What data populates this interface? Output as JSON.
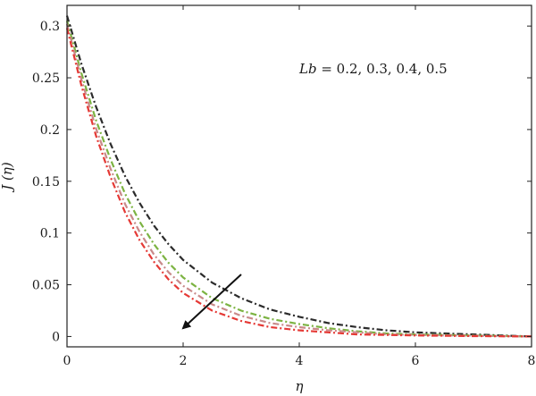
{
  "chart_data": {
    "type": "line",
    "xlabel": "η",
    "ylabel": "J (η)",
    "xlim": [
      0,
      8
    ],
    "ylim": [
      -0.01,
      0.32
    ],
    "xticks": [
      "0",
      "2",
      "4",
      "6",
      "8"
    ],
    "yticks": [
      "0",
      "0.05",
      "0.1",
      "0.15",
      "0.2",
      "0.25",
      "0.3"
    ],
    "grid": false,
    "annotation": {
      "prefix": "Lb",
      "text": " = 0.2, 0.3, 0.4, 0.5"
    },
    "arrow": {
      "from": [
        3.0,
        0.06
      ],
      "to": [
        2.0,
        0.008
      ]
    },
    "x": [
      0,
      0.25,
      0.5,
      0.75,
      1,
      1.25,
      1.5,
      1.75,
      2,
      2.5,
      3,
      3.5,
      4,
      4.5,
      5,
      5.5,
      6,
      6.5,
      7,
      7.5,
      8
    ],
    "series": [
      {
        "color": "#2b2b2b",
        "values": [
          0.31,
          0.263,
          0.222,
          0.186,
          0.155,
          0.129,
          0.107,
          0.089,
          0.074,
          0.052,
          0.037,
          0.026,
          0.019,
          0.013,
          0.009,
          0.006,
          0.004,
          0.003,
          0.002,
          0.001,
          0.0
        ]
      },
      {
        "color": "#7cb342",
        "values": [
          0.305,
          0.254,
          0.209,
          0.171,
          0.138,
          0.111,
          0.089,
          0.071,
          0.057,
          0.037,
          0.025,
          0.017,
          0.012,
          0.008,
          0.005,
          0.003,
          0.002,
          0.0015,
          0.001,
          0.0005,
          0.0
        ]
      },
      {
        "color": "#c98a8a",
        "values": [
          0.302,
          0.248,
          0.201,
          0.162,
          0.128,
          0.101,
          0.079,
          0.062,
          0.049,
          0.031,
          0.02,
          0.013,
          0.009,
          0.006,
          0.004,
          0.002,
          0.0015,
          0.001,
          0.0007,
          0.0003,
          0.0
        ]
      },
      {
        "color": "#e53935",
        "values": [
          0.298,
          0.242,
          0.194,
          0.154,
          0.12,
          0.093,
          0.072,
          0.055,
          0.042,
          0.025,
          0.015,
          0.009,
          0.006,
          0.004,
          0.002,
          0.0015,
          0.001,
          0.0007,
          0.0004,
          0.0002,
          0.0
        ]
      }
    ]
  }
}
